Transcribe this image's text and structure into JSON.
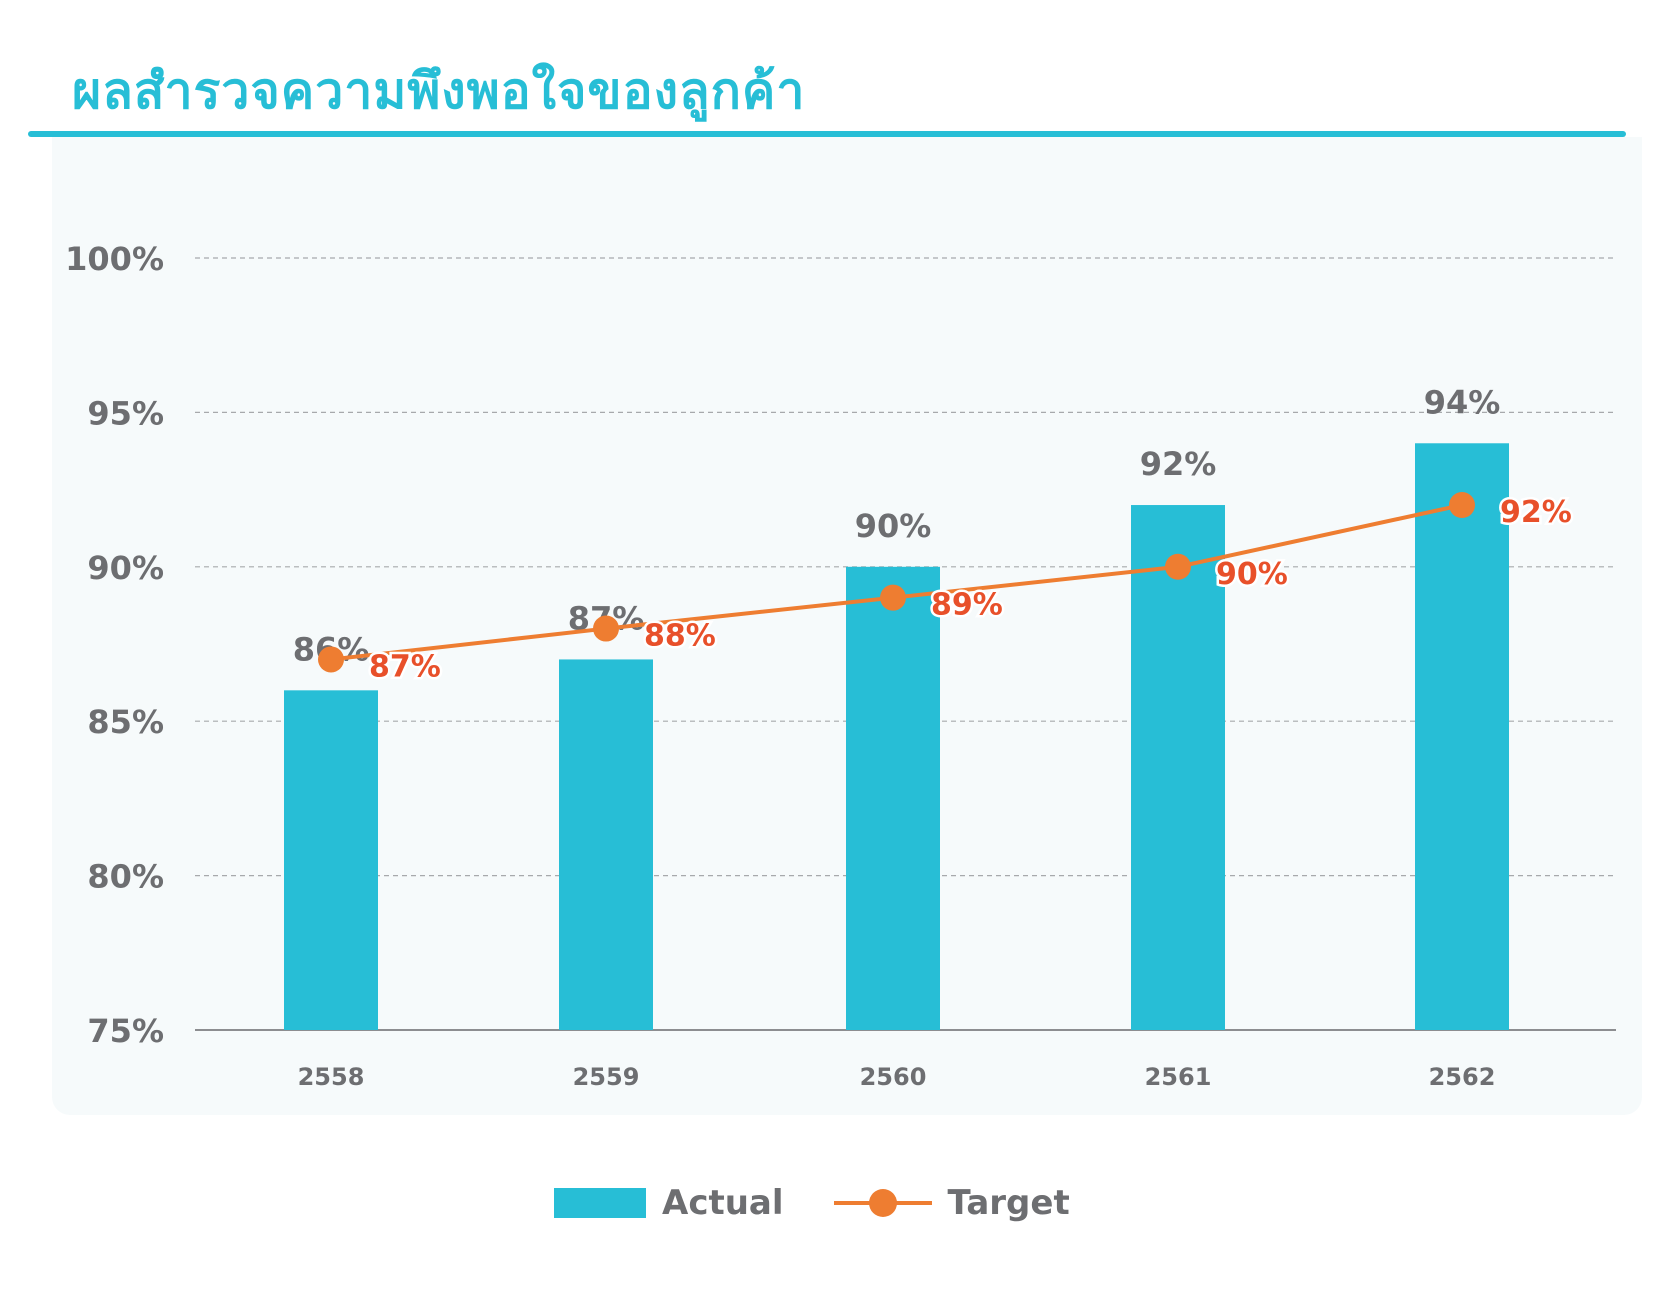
{
  "title": "ผลสำรวจความพึงพอใจของลูกค้า",
  "colors": {
    "actual": "#27bed6",
    "target": "#ee7d31",
    "target_label": "#e8502a",
    "text": "#6d6e71"
  },
  "legend": {
    "actual_label": "Actual",
    "target_label": "Target"
  },
  "chart_data": {
    "type": "bar",
    "categories": [
      "2558",
      "2559",
      "2560",
      "2561",
      "2562"
    ],
    "series": [
      {
        "name": "Actual",
        "type": "bar",
        "values": [
          86,
          87,
          90,
          92,
          94
        ],
        "labels": [
          "86%",
          "87%",
          "90%",
          "92%",
          "94%"
        ]
      },
      {
        "name": "Target",
        "type": "line",
        "values": [
          87,
          88,
          89,
          90,
          92
        ],
        "labels": [
          "87%",
          "88%",
          "89%",
          "90%",
          "92%"
        ]
      }
    ],
    "ylim": [
      75,
      100
    ],
    "yticks": [
      75,
      80,
      85,
      90,
      95,
      100
    ],
    "ytick_labels": [
      "75%",
      "80%",
      "85%",
      "90%",
      "95%",
      "100%"
    ],
    "grid": true,
    "legend_position": "bottom"
  }
}
